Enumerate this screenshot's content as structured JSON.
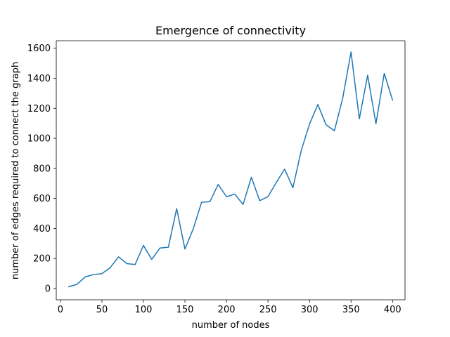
{
  "chart_data": {
    "type": "line",
    "title": "Emergence of connectivity",
    "xlabel": "number of nodes",
    "ylabel": "number of edges required to connect the graph",
    "xlim": [
      -5,
      415
    ],
    "ylim": [
      -75,
      1650
    ],
    "xticks": [
      0,
      50,
      100,
      150,
      200,
      250,
      300,
      350,
      400
    ],
    "yticks": [
      0,
      200,
      400,
      600,
      800,
      1000,
      1200,
      1400,
      1600
    ],
    "grid": false,
    "series": [
      {
        "name": "edges",
        "color": "#1f77b4",
        "x": [
          10,
          20,
          30,
          40,
          50,
          60,
          70,
          80,
          90,
          100,
          110,
          120,
          130,
          140,
          150,
          160,
          170,
          180,
          190,
          200,
          210,
          220,
          230,
          240,
          250,
          260,
          270,
          280,
          290,
          300,
          310,
          320,
          330,
          340,
          350,
          360,
          370,
          380,
          390,
          400
        ],
        "y": [
          12,
          28,
          78,
          93,
          99,
          139,
          211,
          166,
          160,
          287,
          194,
          270,
          275,
          532,
          263,
          398,
          574,
          578,
          693,
          611,
          629,
          560,
          741,
          585,
          612,
          706,
          795,
          671,
          918,
          1095,
          1225,
          1090,
          1050,
          1268,
          1575,
          1130,
          1420,
          1097,
          1432,
          1255
        ]
      }
    ]
  }
}
